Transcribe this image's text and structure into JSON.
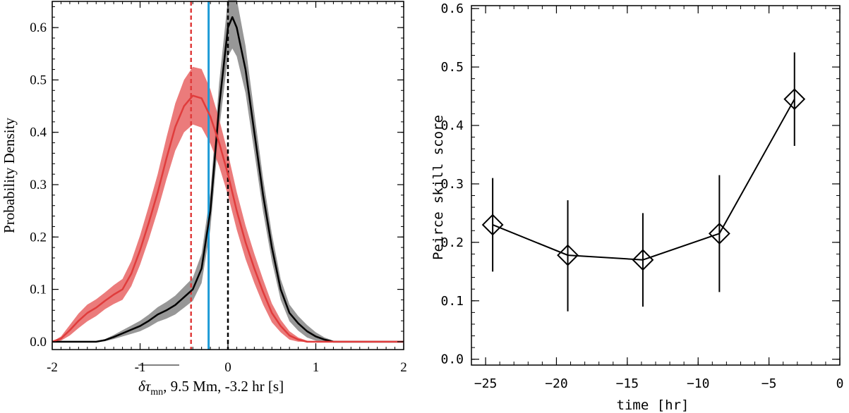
{
  "chart_data": [
    {
      "type": "line",
      "title": "",
      "xlabel_prefix": "δτ",
      "xlabel_subscript": "mn",
      "xlabel_suffix": ", 9.5 Mm, -3.2 hr [s]",
      "ylabel": "Probability Density",
      "xlim": [
        -2,
        2
      ],
      "ylim": [
        -0.015,
        0.65
      ],
      "xticks": [
        -2,
        -1,
        0,
        1,
        2
      ],
      "xtick_labels": [
        "-2",
        "-1",
        "0",
        "1",
        "2"
      ],
      "yticks": [
        0.0,
        0.1,
        0.2,
        0.3,
        0.4,
        0.5,
        0.6
      ],
      "ytick_labels": [
        "0.0",
        "0.1",
        "0.2",
        "0.3",
        "0.4",
        "0.5",
        "0.6"
      ],
      "series": [
        {
          "name": "red distribution",
          "color": "#e03c3c",
          "band_color": "#e86464",
          "x": [
            -2.0,
            -1.9,
            -1.8,
            -1.7,
            -1.6,
            -1.5,
            -1.4,
            -1.3,
            -1.2,
            -1.1,
            -1.0,
            -0.9,
            -0.8,
            -0.7,
            -0.6,
            -0.5,
            -0.4,
            -0.3,
            -0.2,
            -0.1,
            0.0,
            0.1,
            0.2,
            0.3,
            0.4,
            0.5,
            0.6,
            0.7,
            0.8,
            0.9,
            1.0,
            2.0
          ],
          "values": [
            0.0,
            0.006,
            0.022,
            0.04,
            0.055,
            0.065,
            0.078,
            0.09,
            0.1,
            0.13,
            0.175,
            0.228,
            0.285,
            0.35,
            0.41,
            0.45,
            0.47,
            0.465,
            0.43,
            0.38,
            0.32,
            0.25,
            0.19,
            0.14,
            0.095,
            0.055,
            0.03,
            0.012,
            0.004,
            0.0,
            0.0,
            0.0
          ],
          "band_halfwidth": [
            0.0,
            0.004,
            0.01,
            0.014,
            0.016,
            0.016,
            0.016,
            0.018,
            0.02,
            0.024,
            0.028,
            0.032,
            0.035,
            0.04,
            0.045,
            0.05,
            0.055,
            0.056,
            0.052,
            0.045,
            0.04,
            0.036,
            0.032,
            0.028,
            0.024,
            0.018,
            0.012,
            0.008,
            0.004,
            0.002,
            0.0,
            0.0
          ]
        },
        {
          "name": "black distribution",
          "color": "#000000",
          "band_color": "#8c8c8c",
          "x": [
            -2.0,
            -1.5,
            -1.4,
            -1.3,
            -1.2,
            -1.1,
            -1.0,
            -0.9,
            -0.8,
            -0.7,
            -0.6,
            -0.5,
            -0.4,
            -0.3,
            -0.2,
            -0.1,
            0.0,
            0.05,
            0.1,
            0.2,
            0.3,
            0.4,
            0.5,
            0.6,
            0.7,
            0.8,
            0.9,
            1.0,
            1.1,
            1.2,
            1.3,
            2.0
          ],
          "values": [
            0.0,
            0.0,
            0.003,
            0.009,
            0.016,
            0.023,
            0.03,
            0.04,
            0.052,
            0.06,
            0.07,
            0.085,
            0.1,
            0.14,
            0.25,
            0.45,
            0.6,
            0.62,
            0.6,
            0.52,
            0.4,
            0.28,
            0.18,
            0.1,
            0.055,
            0.035,
            0.02,
            0.01,
            0.004,
            0.0,
            0.0,
            0.0
          ],
          "band_halfwidth": [
            0.0,
            0.0,
            0.002,
            0.004,
            0.006,
            0.008,
            0.01,
            0.012,
            0.014,
            0.016,
            0.018,
            0.02,
            0.022,
            0.028,
            0.035,
            0.045,
            0.055,
            0.06,
            0.055,
            0.045,
            0.038,
            0.032,
            0.026,
            0.02,
            0.016,
            0.014,
            0.012,
            0.008,
            0.004,
            0.002,
            0.0,
            0.0
          ]
        }
      ],
      "vertical_lines": [
        {
          "name": "red-mean-line",
          "x": -0.42,
          "color": "#e03c3c",
          "style": "dashed"
        },
        {
          "name": "blue-line",
          "x": -0.22,
          "color": "#1e9bd7",
          "style": "solid"
        },
        {
          "name": "zero-line",
          "x": 0.0,
          "color": "#000000",
          "style": "dashed"
        }
      ]
    },
    {
      "type": "line",
      "title": "",
      "xlabel": "time [hr]",
      "ylabel": "Peirce skill score",
      "xlim": [
        -26,
        0
      ],
      "ylim": [
        -0.01,
        0.605
      ],
      "xticks": [
        -25,
        -20,
        -15,
        -10,
        -5,
        0
      ],
      "xtick_labels": [
        "−25",
        "−20",
        "−15",
        "−10",
        "−5",
        "0"
      ],
      "yticks": [
        0.0,
        0.1,
        0.2,
        0.3,
        0.4,
        0.5,
        0.6
      ],
      "ytick_labels": [
        "0.0",
        "0.1",
        "0.2",
        "0.3",
        "0.4",
        "0.5",
        "0.6"
      ],
      "series": [
        {
          "name": "Peirce skill score",
          "marker": "diamond",
          "x": [
            -24.5,
            -19.2,
            -13.9,
            -8.5,
            -3.2
          ],
          "values": [
            0.23,
            0.178,
            0.17,
            0.215,
            0.445
          ],
          "err_low": [
            0.15,
            0.082,
            0.09,
            0.115,
            0.365
          ],
          "err_high": [
            0.31,
            0.272,
            0.25,
            0.315,
            0.525
          ]
        }
      ]
    }
  ]
}
